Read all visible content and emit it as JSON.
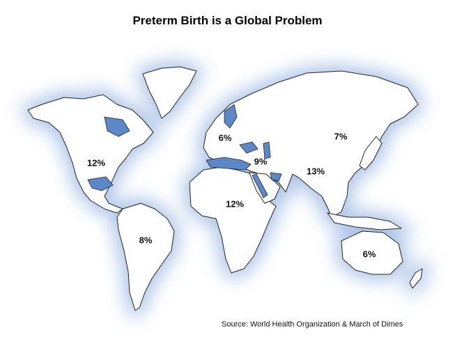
{
  "title": "Preterm Birth is a Global Problem",
  "source": "Source: World Health Organization & March of Dimes",
  "colors": {
    "land": "#ffffff",
    "land_outline": "#222222",
    "water_glow": "#9db9e3",
    "inland_water": "#5d88c7"
  },
  "regions": [
    {
      "name": "North America",
      "rate": "12%"
    },
    {
      "name": "South America",
      "rate": "8%"
    },
    {
      "name": "Europe",
      "rate": "6%"
    },
    {
      "name": "Africa",
      "rate": "12%"
    },
    {
      "name": "Middle East",
      "rate": "9%"
    },
    {
      "name": "East Asia",
      "rate": "7%"
    },
    {
      "name": "South and Southeast Asia",
      "rate": "13%"
    },
    {
      "name": "Oceania",
      "rate": "6%"
    }
  ]
}
